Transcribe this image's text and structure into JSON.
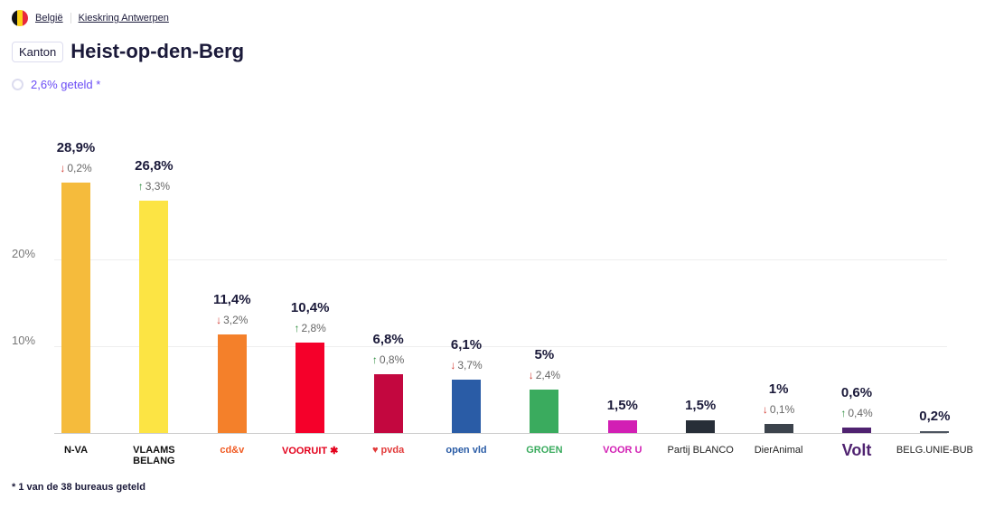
{
  "breadcrumb": [
    "België",
    "Kieskring Antwerpen"
  ],
  "header": {
    "badge": "Kanton",
    "title": "Heist-op-den-Berg"
  },
  "status": {
    "counted": "2,6% geteld *"
  },
  "footnote": "* 1 van de 38 bureaus geteld",
  "colors": {
    "up": "#2a8a3a",
    "down": "#d0342c",
    "accent": "#6b4df5"
  },
  "chart_data": {
    "type": "bar",
    "ylim": [
      0,
      30
    ],
    "yticks": [
      {
        "value": 10,
        "label": "10%"
      },
      {
        "value": 20,
        "label": "20%"
      }
    ],
    "categories": [
      "N-VA",
      "Vlaams Belang",
      "cd&v",
      "Vooruit",
      "PVDA",
      "Open VLD",
      "Groen",
      "Voor U",
      "Partij BLANCO",
      "DierAnimal",
      "Volt",
      "BELG.UNIE-BUB"
    ],
    "logo_text": [
      "N-VA",
      "VLAAMS BELANG",
      "cd&v",
      "VOORUIT ✱",
      "♥ pvda",
      "open vld",
      "GROEN",
      "VOOR U",
      "Partij BLANCO",
      "DierAnimal",
      "Volt",
      "BELG.UNIE-BUB"
    ],
    "values": [
      28.9,
      26.8,
      11.4,
      10.4,
      6.8,
      6.1,
      5,
      1.5,
      1.5,
      1,
      0.6,
      0.2
    ],
    "value_labels": [
      "28,9%",
      "26,8%",
      "11,4%",
      "10,4%",
      "6,8%",
      "6,1%",
      "5%",
      "1,5%",
      "1,5%",
      "1%",
      "0,6%",
      "0,2%"
    ],
    "changes": [
      {
        "dir": "down",
        "label": "0,2%"
      },
      {
        "dir": "up",
        "label": "3,3%"
      },
      {
        "dir": "down",
        "label": "3,2%"
      },
      {
        "dir": "up",
        "label": "2,8%"
      },
      {
        "dir": "up",
        "label": "0,8%"
      },
      {
        "dir": "down",
        "label": "3,7%"
      },
      {
        "dir": "down",
        "label": "2,4%"
      },
      null,
      null,
      {
        "dir": "down",
        "label": "0,1%"
      },
      {
        "dir": "up",
        "label": "0,4%"
      },
      null
    ],
    "bar_colors": [
      "#f5bb3c",
      "#fce444",
      "#f4802a",
      "#f5002a",
      "#c3073f",
      "#2a5ca6",
      "#3aab5e",
      "#d21fb4",
      "#272e38",
      "#3c434c",
      "#4f2270",
      "#4d5560"
    ],
    "logo_colors": [
      "#111",
      "#111",
      "#f05a22",
      "#e3001b",
      "#e23a3a",
      "#2a5ca6",
      "#3aab5e",
      "#d21fb4",
      "#222",
      "#222",
      "#4f2270",
      "#222"
    ]
  }
}
